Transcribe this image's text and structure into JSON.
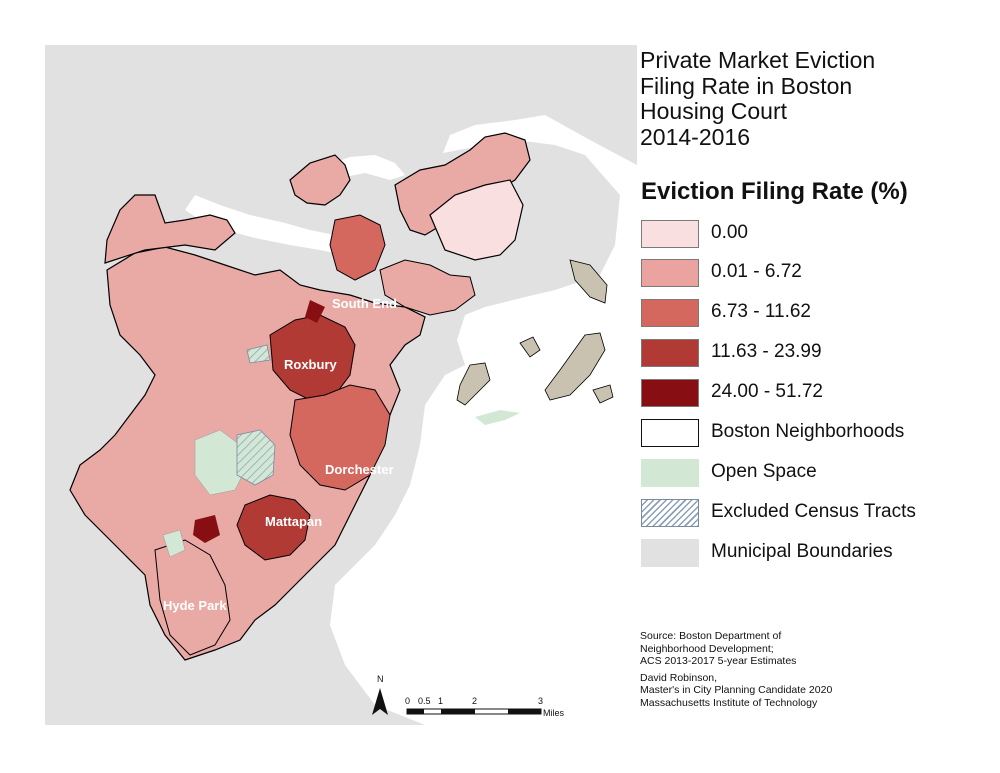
{
  "title_lines": [
    "Private Market Eviction",
    "Filing Rate in Boston",
    "Housing Court",
    "2014-2016"
  ],
  "legend": {
    "heading": "Eviction Filing Rate (%)",
    "items": [
      {
        "label": "0.00",
        "color": "#f9dfe0",
        "key": "rate-0"
      },
      {
        "label": "0.01 - 6.72",
        "color": "#eba3a0",
        "key": "rate-1"
      },
      {
        "label": "6.73 - 11.62",
        "color": "#d4685f",
        "key": "rate-2"
      },
      {
        "label": "11.63 - 23.99",
        "color": "#b23a35",
        "key": "rate-3"
      },
      {
        "label": "24.00 - 51.72",
        "color": "#870e12",
        "key": "rate-4"
      },
      {
        "label": "Boston Neighborhoods",
        "color": "#ffffff",
        "key": "neighborhoods"
      },
      {
        "label": "Open Space",
        "color": "#d3e8d4",
        "key": "open-space"
      },
      {
        "label": "Excluded Census Tracts",
        "color": "#ffffff",
        "key": "excluded"
      },
      {
        "label": "Municipal Boundaries",
        "color": "#e1e1e1",
        "key": "municipal"
      }
    ]
  },
  "map_labels": {
    "south_end": "South End",
    "roxbury": "Roxbury",
    "dorchester": "Dorchester",
    "mattapan": "Mattapan",
    "hyde_park": "Hyde Park"
  },
  "north_arrow": "N",
  "scale_bar": {
    "ticks": [
      "0",
      "0.5",
      "1",
      "2",
      "3"
    ],
    "unit": "Miles"
  },
  "source_lines": [
    "Source: Boston Department of",
    "Neighborhood Development;",
    "ACS 2013-2017 5-year Estimates",
    "David Robinson,",
    "Master's in City Planning Candidate 2020",
    "Massachusetts Institute of Technology"
  ],
  "colors": {
    "water": "#ffffff",
    "land": "#e1e1e1",
    "boundary": "#000000"
  }
}
